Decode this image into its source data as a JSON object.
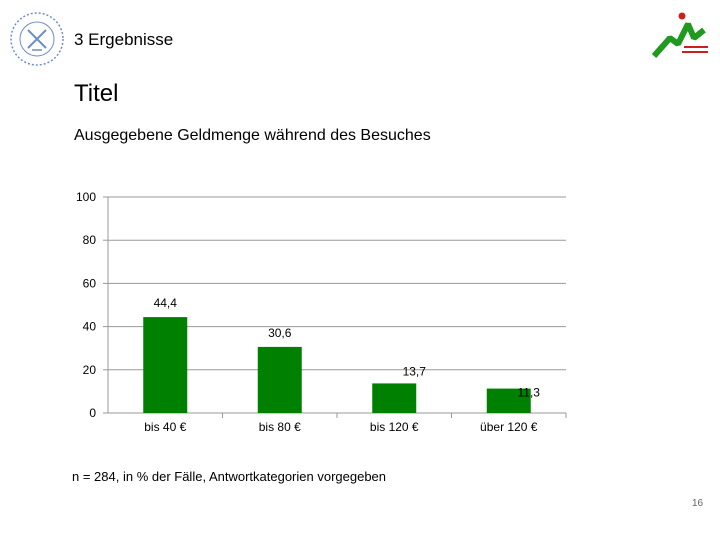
{
  "header": {
    "section_title": "3 Ergebnisse",
    "seal_icon": "university-seal-icon",
    "logo_icon": "marketing-international-logo-icon",
    "logo_colors": {
      "primary": "#1f9a1f",
      "accent": "#cc1f1f"
    }
  },
  "slide": {
    "title": "Titel",
    "footnote": "n = 284, in % der Fälle, Antwortkategorien vorgegeben",
    "page_number": "16"
  },
  "chart_data": {
    "type": "bar",
    "title": "Ausgegebene Geldmenge während des Besuches",
    "categories": [
      "bis 40 €",
      "bis 80 €",
      "bis 120 €",
      "über 120 €"
    ],
    "values": [
      44.4,
      30.6,
      13.7,
      11.3
    ],
    "value_labels": [
      "44,4",
      "30,6",
      "13,7",
      "11,3"
    ],
    "ylim": [
      0,
      100
    ],
    "yticks": [
      0,
      20,
      40,
      60,
      80,
      100
    ],
    "ytick_labels": [
      "0",
      "20",
      "40",
      "60",
      "80",
      "100"
    ],
    "grid": true,
    "xlabel": "",
    "ylabel": "",
    "bar_color": "#008000"
  }
}
